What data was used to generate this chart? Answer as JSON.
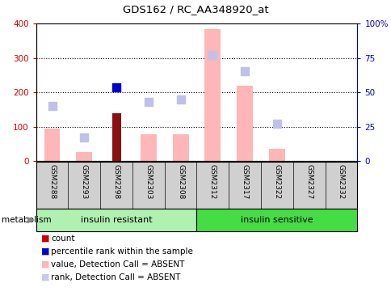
{
  "title": "GDS162 / RC_AA348920_at",
  "samples": [
    "GSM2288",
    "GSM2293",
    "GSM2298",
    "GSM2303",
    "GSM2308",
    "GSM2312",
    "GSM2317",
    "GSM2322",
    "GSM2327",
    "GSM2332"
  ],
  "count_values": [
    0,
    0,
    140,
    0,
    0,
    0,
    0,
    0,
    0,
    0
  ],
  "percentile_rank_values": [
    null,
    null,
    215,
    null,
    null,
    null,
    null,
    null,
    null,
    null
  ],
  "value_absent": [
    95,
    27,
    null,
    78,
    78,
    385,
    220,
    37,
    0,
    0
  ],
  "rank_absent": [
    160,
    70,
    null,
    172,
    180,
    310,
    262,
    110,
    null,
    null
  ],
  "ylim_left": [
    0,
    400
  ],
  "ylim_right": [
    0,
    100
  ],
  "yticks_left": [
    0,
    100,
    200,
    300,
    400
  ],
  "yticks_right": [
    0,
    25,
    50,
    75,
    100
  ],
  "yticklabels_right": [
    "0",
    "25",
    "50",
    "75",
    "100%"
  ],
  "group1_label": "insulin resistant",
  "group2_label": "insulin sensitive",
  "group1_indices": [
    0,
    1,
    2,
    3,
    4
  ],
  "group2_indices": [
    5,
    6,
    7,
    8,
    9
  ],
  "metabolism_label": "metabolism",
  "legend_items": [
    {
      "label": "count",
      "color": "#cc0000",
      "type": "square"
    },
    {
      "label": "percentile rank within the sample",
      "color": "#0000cc",
      "type": "square"
    },
    {
      "label": "value, Detection Call = ABSENT",
      "color": "#ffb6b6",
      "type": "square"
    },
    {
      "label": "rank, Detection Call = ABSENT",
      "color": "#c8c8f0",
      "type": "square"
    }
  ],
  "bar_width": 0.5,
  "count_color": "#8b1010",
  "percentile_color": "#0000cc",
  "value_absent_color": "#ffb6b6",
  "rank_absent_color": "#c0c0e8",
  "group1_color": "#b0f0b0",
  "group2_color": "#44dd44",
  "axis_color_left": "#cc0000",
  "axis_color_right": "#0000cc",
  "bg_color": "#ffffff",
  "label_bg": "#d0d0d0"
}
